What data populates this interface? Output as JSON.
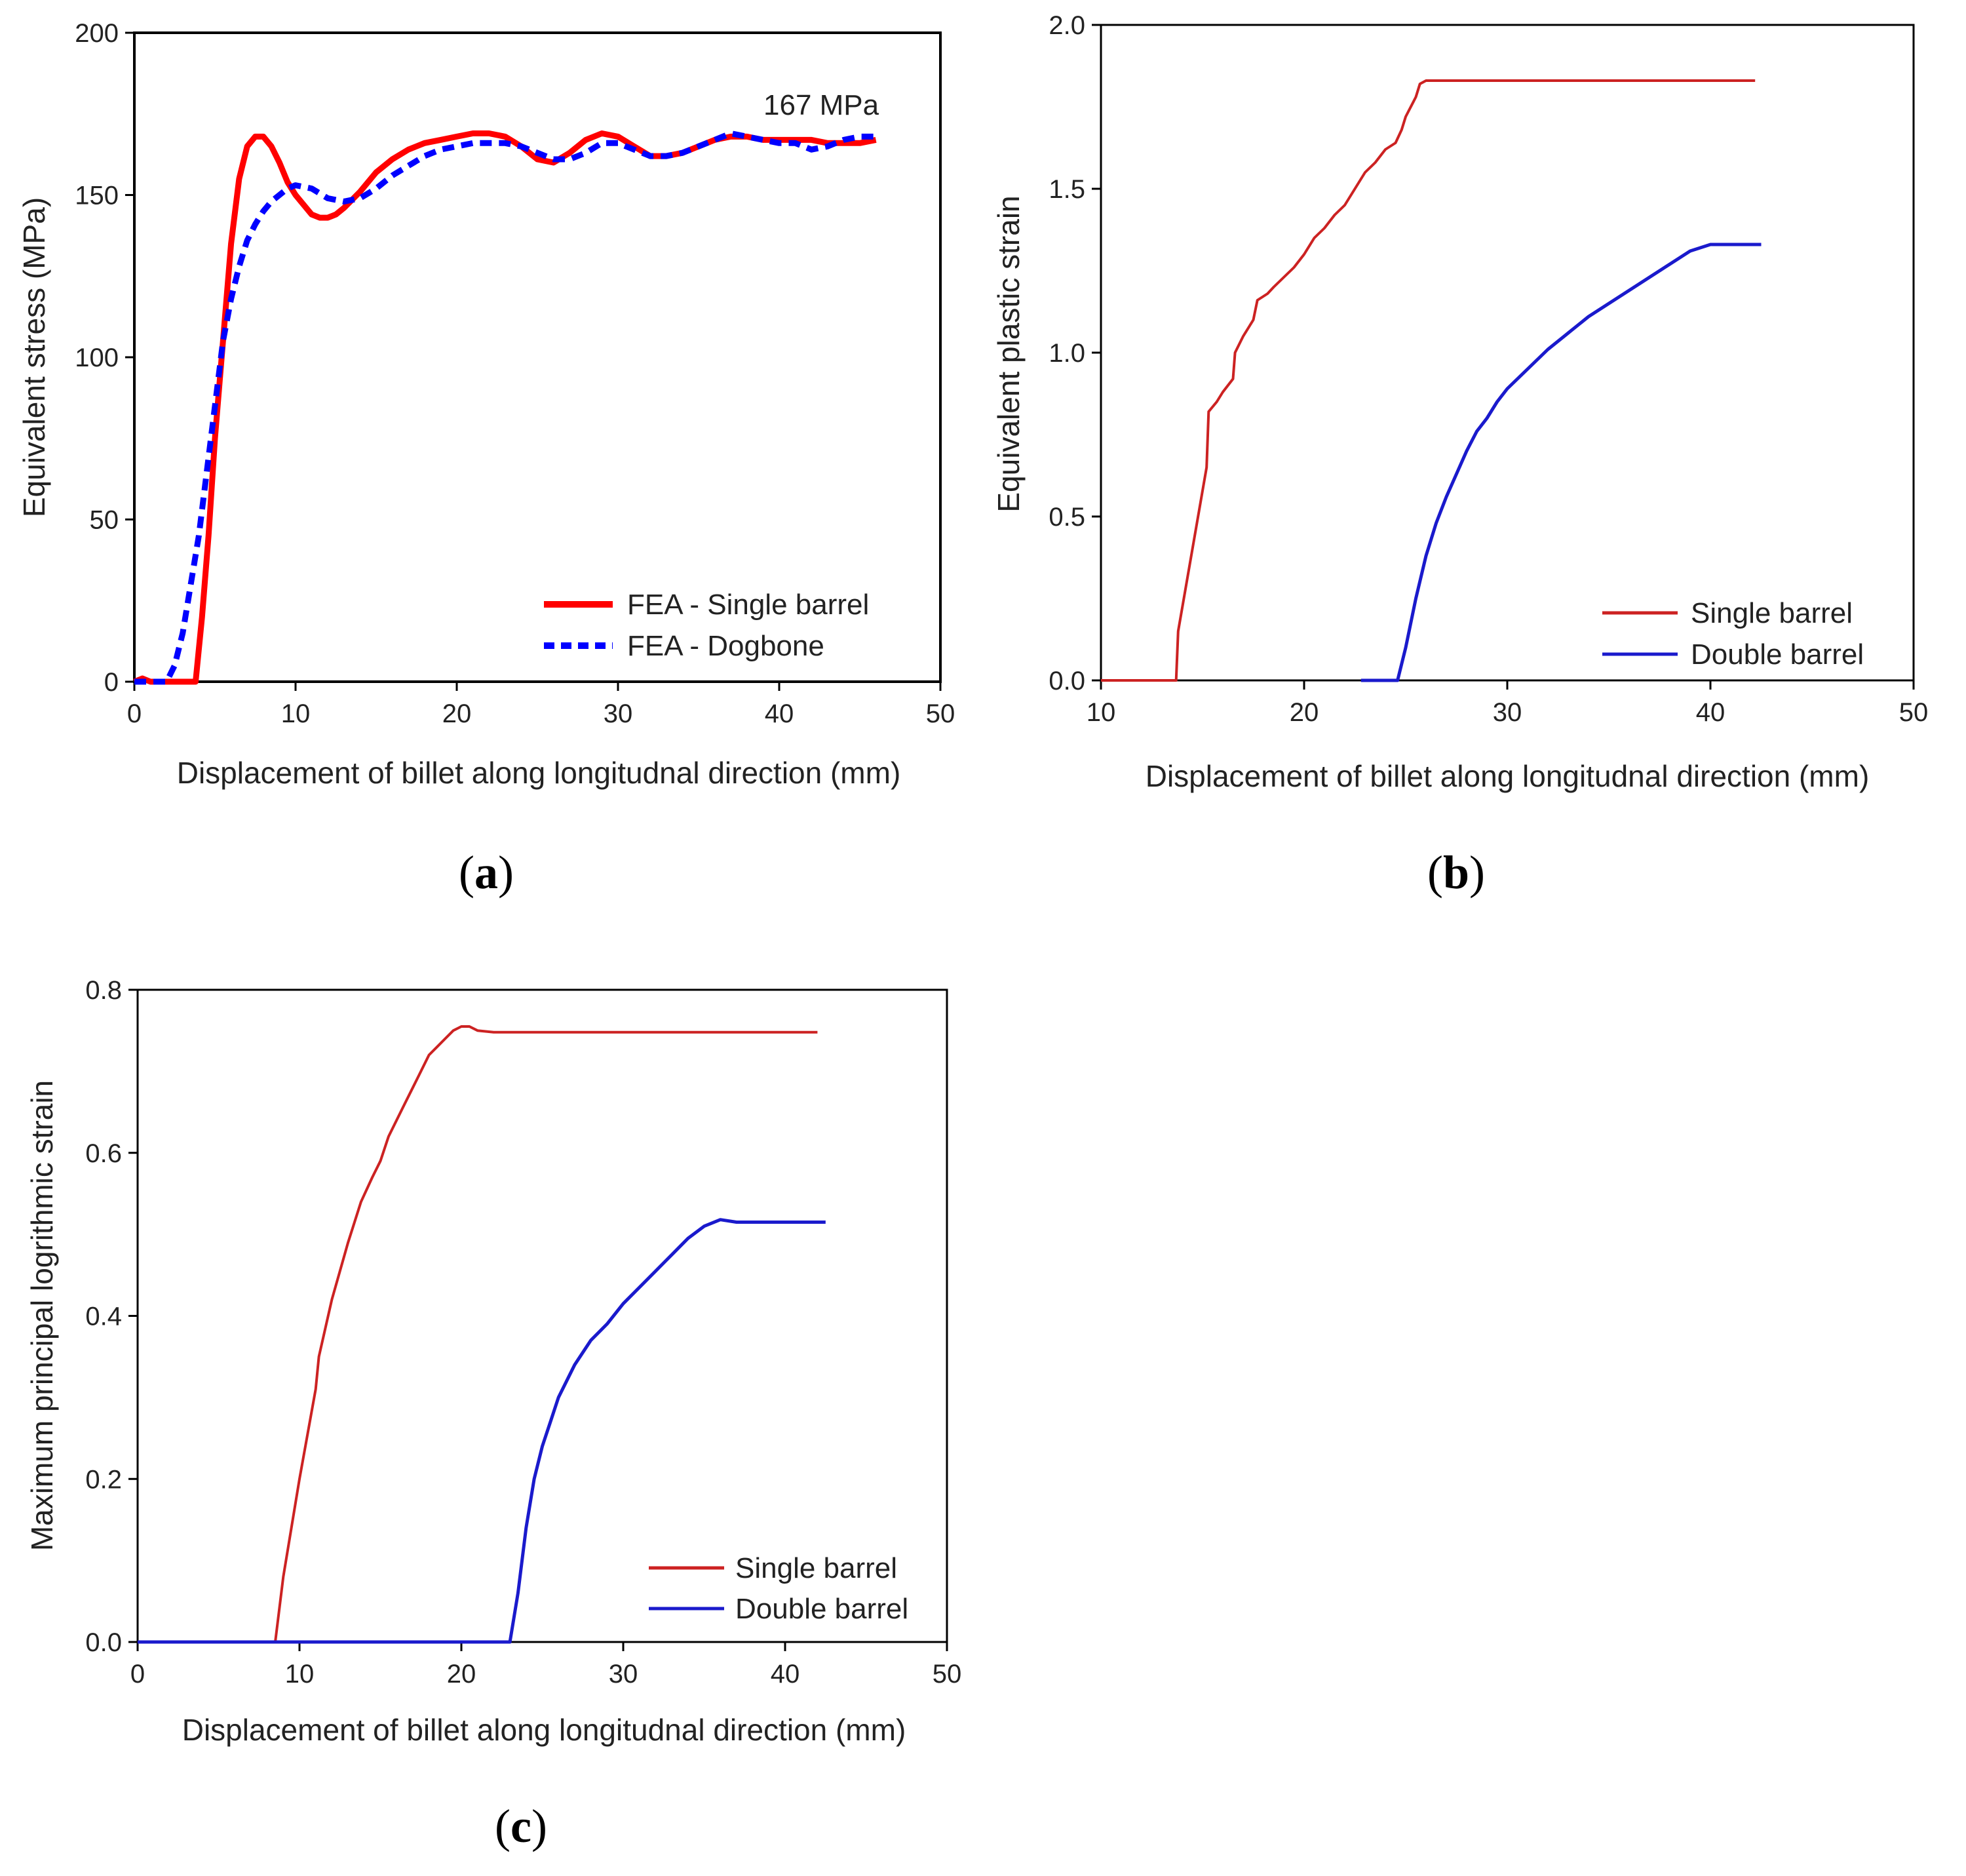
{
  "figure": {
    "panel_labels": [
      "a",
      "b",
      "c"
    ]
  },
  "chart_data": [
    {
      "panel": "a",
      "type": "line",
      "title": "",
      "xlabel": "Displacement of billet along longitudnal direction (mm)",
      "ylabel": "Equivalent stress (MPa)",
      "xlim": [
        0,
        50
      ],
      "ylim": [
        0,
        200
      ],
      "xticks": [
        0,
        10,
        20,
        30,
        40,
        50
      ],
      "yticks": [
        0,
        50,
        100,
        150,
        200
      ],
      "xtick_labels": [
        "0",
        "10",
        "20",
        "30",
        "40",
        "50"
      ],
      "ytick_labels": [
        "0",
        "50",
        "100",
        "150",
        "200"
      ],
      "grid": false,
      "legend_position": "bottom-right",
      "annotation": "167 MPa",
      "series": [
        {
          "name": "FEA - Single barrel",
          "color": "#ff0000",
          "style": "solid",
          "x": [
            0.0,
            0.5,
            1.0,
            1.5,
            2.0,
            2.5,
            3.0,
            3.5,
            3.8,
            4.2,
            4.6,
            5.0,
            5.5,
            6.0,
            6.5,
            7.0,
            7.5,
            8.0,
            8.5,
            9.0,
            9.5,
            10.0,
            10.5,
            11.0,
            11.5,
            12.0,
            12.5,
            13.0,
            14.0,
            15.0,
            16.0,
            17.0,
            18.0,
            19.0,
            20.0,
            21.0,
            22.0,
            23.0,
            24.0,
            25.0,
            26.0,
            27.0,
            28.0,
            29.0,
            30.0,
            31.0,
            32.0,
            33.0,
            34.0,
            35.0,
            36.0,
            37.0,
            38.0,
            39.0,
            40.0,
            41.0,
            42.0,
            43.0,
            44.0,
            45.0,
            46.0
          ],
          "y": [
            0,
            1,
            0,
            0,
            0,
            0,
            0,
            0,
            0,
            20,
            45,
            75,
            105,
            135,
            155,
            165,
            168,
            168,
            165,
            160,
            154,
            150,
            147,
            144,
            143,
            143,
            144,
            146,
            151,
            157,
            161,
            164,
            166,
            167,
            168,
            169,
            169,
            168,
            165,
            161,
            160,
            163,
            167,
            169,
            168,
            165,
            162,
            162,
            163,
            165,
            167,
            168,
            168,
            167,
            167,
            167,
            167,
            166,
            166,
            166,
            167
          ]
        },
        {
          "name": "FEA - Dogbone",
          "color": "#0000ff",
          "style": "dashed",
          "x": [
            0.0,
            0.5,
            1.0,
            1.5,
            2.0,
            2.5,
            3.0,
            3.5,
            4.0,
            4.5,
            5.0,
            5.5,
            6.0,
            6.5,
            7.0,
            7.5,
            8.0,
            8.5,
            9.0,
            9.5,
            10.0,
            11.0,
            12.0,
            13.0,
            14.0,
            15.0,
            16.0,
            17.0,
            18.0,
            19.0,
            20.0,
            21.0,
            22.0,
            23.0,
            24.0,
            25.0,
            26.0,
            27.0,
            28.0,
            29.0,
            30.0,
            31.0,
            32.0,
            33.0,
            34.0,
            35.0,
            36.0,
            37.0,
            38.0,
            39.0,
            40.0,
            41.0,
            42.0,
            43.0,
            44.0,
            45.0,
            46.0
          ],
          "y": [
            0,
            0,
            0,
            0,
            0,
            5,
            15,
            30,
            45,
            65,
            85,
            105,
            118,
            128,
            136,
            141,
            145,
            148,
            150,
            152,
            153,
            152,
            149,
            148,
            149,
            152,
            156,
            159,
            162,
            164,
            165,
            166,
            166,
            166,
            165,
            163,
            161,
            161,
            163,
            166,
            166,
            164,
            162,
            162,
            163,
            165,
            167,
            169,
            168,
            167,
            166,
            166,
            164,
            165,
            167,
            168,
            168
          ]
        }
      ]
    },
    {
      "panel": "b",
      "type": "line",
      "title": "",
      "xlabel": "Displacement of billet along longitudnal direction (mm)",
      "ylabel": "Equivalent plastic strain",
      "xlim": [
        10,
        50
      ],
      "ylim": [
        0,
        2.0
      ],
      "xticks": [
        10,
        20,
        30,
        40,
        50
      ],
      "yticks": [
        0.0,
        0.5,
        1.0,
        1.5,
        2.0
      ],
      "xtick_labels": [
        "10",
        "20",
        "30",
        "40",
        "50"
      ],
      "ytick_labels": [
        "0.0",
        "0.5",
        "1.0",
        "1.5",
        "2.0"
      ],
      "grid": false,
      "legend_position": "bottom-right",
      "series": [
        {
          "name": "Single barrel",
          "color": "#cc2222",
          "style": "solid",
          "x": [
            10.0,
            13.7,
            13.8,
            14.5,
            15.2,
            15.3,
            15.7,
            16.0,
            16.5,
            16.6,
            17.0,
            17.5,
            17.7,
            18.2,
            18.5,
            19.0,
            19.5,
            20.0,
            20.5,
            21.0,
            21.5,
            22.0,
            22.5,
            23.0,
            23.5,
            24.0,
            24.5,
            24.8,
            25.0,
            25.5,
            25.7,
            26.0,
            42.2
          ],
          "y": [
            0.0,
            0.0,
            0.15,
            0.4,
            0.65,
            0.82,
            0.85,
            0.88,
            0.92,
            1.0,
            1.05,
            1.1,
            1.16,
            1.18,
            1.2,
            1.23,
            1.26,
            1.3,
            1.35,
            1.38,
            1.42,
            1.45,
            1.5,
            1.55,
            1.58,
            1.62,
            1.64,
            1.68,
            1.72,
            1.78,
            1.82,
            1.83,
            1.83
          ]
        },
        {
          "name": "Double barrel",
          "color": "#1a1acc",
          "style": "solid",
          "x": [
            22.8,
            24.6,
            25.0,
            25.5,
            26.0,
            26.5,
            27.0,
            27.5,
            28.0,
            28.5,
            29.0,
            29.5,
            30.0,
            31.0,
            32.0,
            33.0,
            34.0,
            35.0,
            36.0,
            37.0,
            38.0,
            39.0,
            40.0,
            41.0,
            42.5
          ],
          "y": [
            0.0,
            0.0,
            0.1,
            0.25,
            0.38,
            0.48,
            0.56,
            0.63,
            0.7,
            0.76,
            0.8,
            0.85,
            0.89,
            0.95,
            1.01,
            1.06,
            1.11,
            1.15,
            1.19,
            1.23,
            1.27,
            1.31,
            1.33,
            1.33,
            1.33
          ]
        }
      ]
    },
    {
      "panel": "c",
      "type": "line",
      "title": "",
      "xlabel": "Displacement of billet along longitudnal direction (mm)",
      "ylabel": "Maximum principal logrithmic strain",
      "xlim": [
        0,
        50
      ],
      "ylim": [
        0,
        0.8
      ],
      "xticks": [
        0,
        10,
        20,
        30,
        40,
        50
      ],
      "yticks": [
        0.0,
        0.2,
        0.4,
        0.6,
        0.8
      ],
      "xtick_labels": [
        "0",
        "10",
        "20",
        "30",
        "40",
        "50"
      ],
      "ytick_labels": [
        "0.0",
        "0.2",
        "0.4",
        "0.6",
        "0.8"
      ],
      "grid": false,
      "legend_position": "bottom-right",
      "series": [
        {
          "name": "Single barrel",
          "color": "#cc2222",
          "style": "solid",
          "x": [
            0.0,
            8.0,
            8.5,
            9.0,
            10.0,
            11.0,
            11.2,
            12.0,
            13.0,
            13.8,
            14.5,
            15.0,
            15.5,
            16.0,
            16.5,
            17.0,
            17.5,
            18.0,
            18.5,
            19.0,
            19.5,
            20.0,
            20.5,
            21.0,
            22.0,
            42.0
          ],
          "y": [
            0.0,
            0.0,
            0.0,
            0.08,
            0.2,
            0.31,
            0.35,
            0.42,
            0.49,
            0.54,
            0.57,
            0.59,
            0.62,
            0.64,
            0.66,
            0.68,
            0.7,
            0.72,
            0.73,
            0.74,
            0.75,
            0.755,
            0.755,
            0.75,
            0.748,
            0.748
          ]
        },
        {
          "name": "Double barrel",
          "color": "#1a1acc",
          "style": "solid",
          "x": [
            0.0,
            23.0,
            23.5,
            24.0,
            24.5,
            25.0,
            25.5,
            26.0,
            27.0,
            28.0,
            29.0,
            30.0,
            31.0,
            32.0,
            33.0,
            34.0,
            35.0,
            36.0,
            37.0,
            42.5
          ],
          "y": [
            0.0,
            0.0,
            0.06,
            0.14,
            0.2,
            0.24,
            0.27,
            0.3,
            0.34,
            0.37,
            0.39,
            0.415,
            0.435,
            0.455,
            0.475,
            0.495,
            0.51,
            0.518,
            0.515,
            0.515
          ]
        }
      ]
    }
  ]
}
